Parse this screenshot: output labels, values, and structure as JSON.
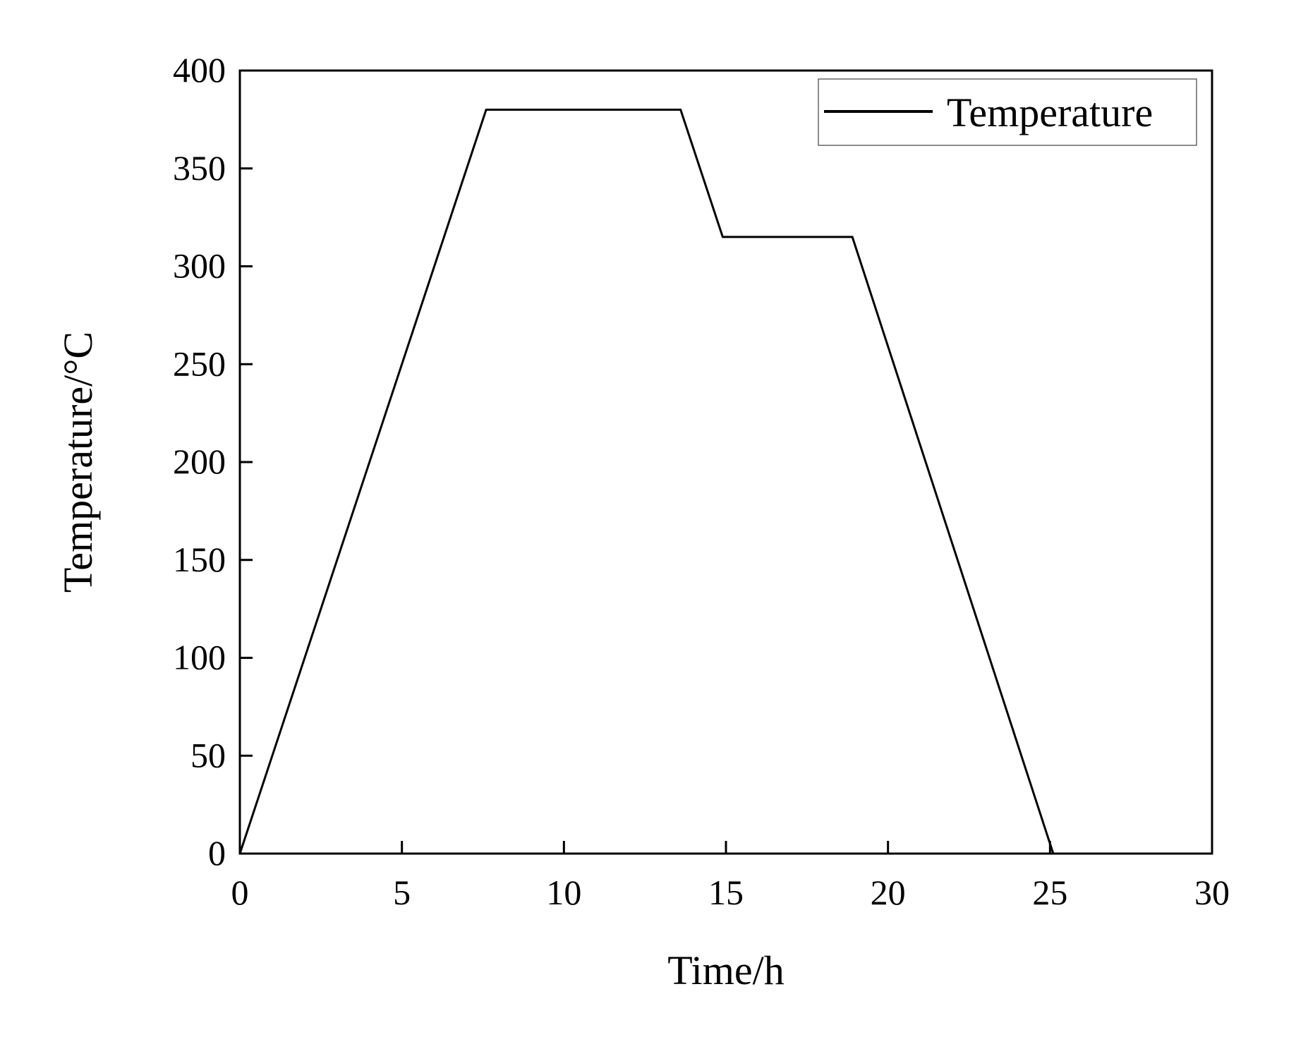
{
  "chart_data": {
    "type": "line",
    "title": "",
    "xlabel": "Time/h",
    "ylabel": "Temperature/°C",
    "xlim": [
      0,
      30
    ],
    "ylim": [
      0,
      400
    ],
    "x_ticks": [
      0,
      5,
      10,
      15,
      20,
      25,
      30
    ],
    "y_ticks": [
      0,
      50,
      100,
      150,
      200,
      250,
      300,
      350,
      400
    ],
    "grid": false,
    "legend": {
      "position": "top-right",
      "entries": [
        "Temperature"
      ]
    },
    "series": [
      {
        "name": "Temperature",
        "color": "#000000",
        "x": [
          0,
          7.6,
          13.6,
          14.9,
          18.9,
          25.1
        ],
        "y": [
          0,
          380,
          380,
          315,
          315,
          0
        ]
      }
    ]
  }
}
